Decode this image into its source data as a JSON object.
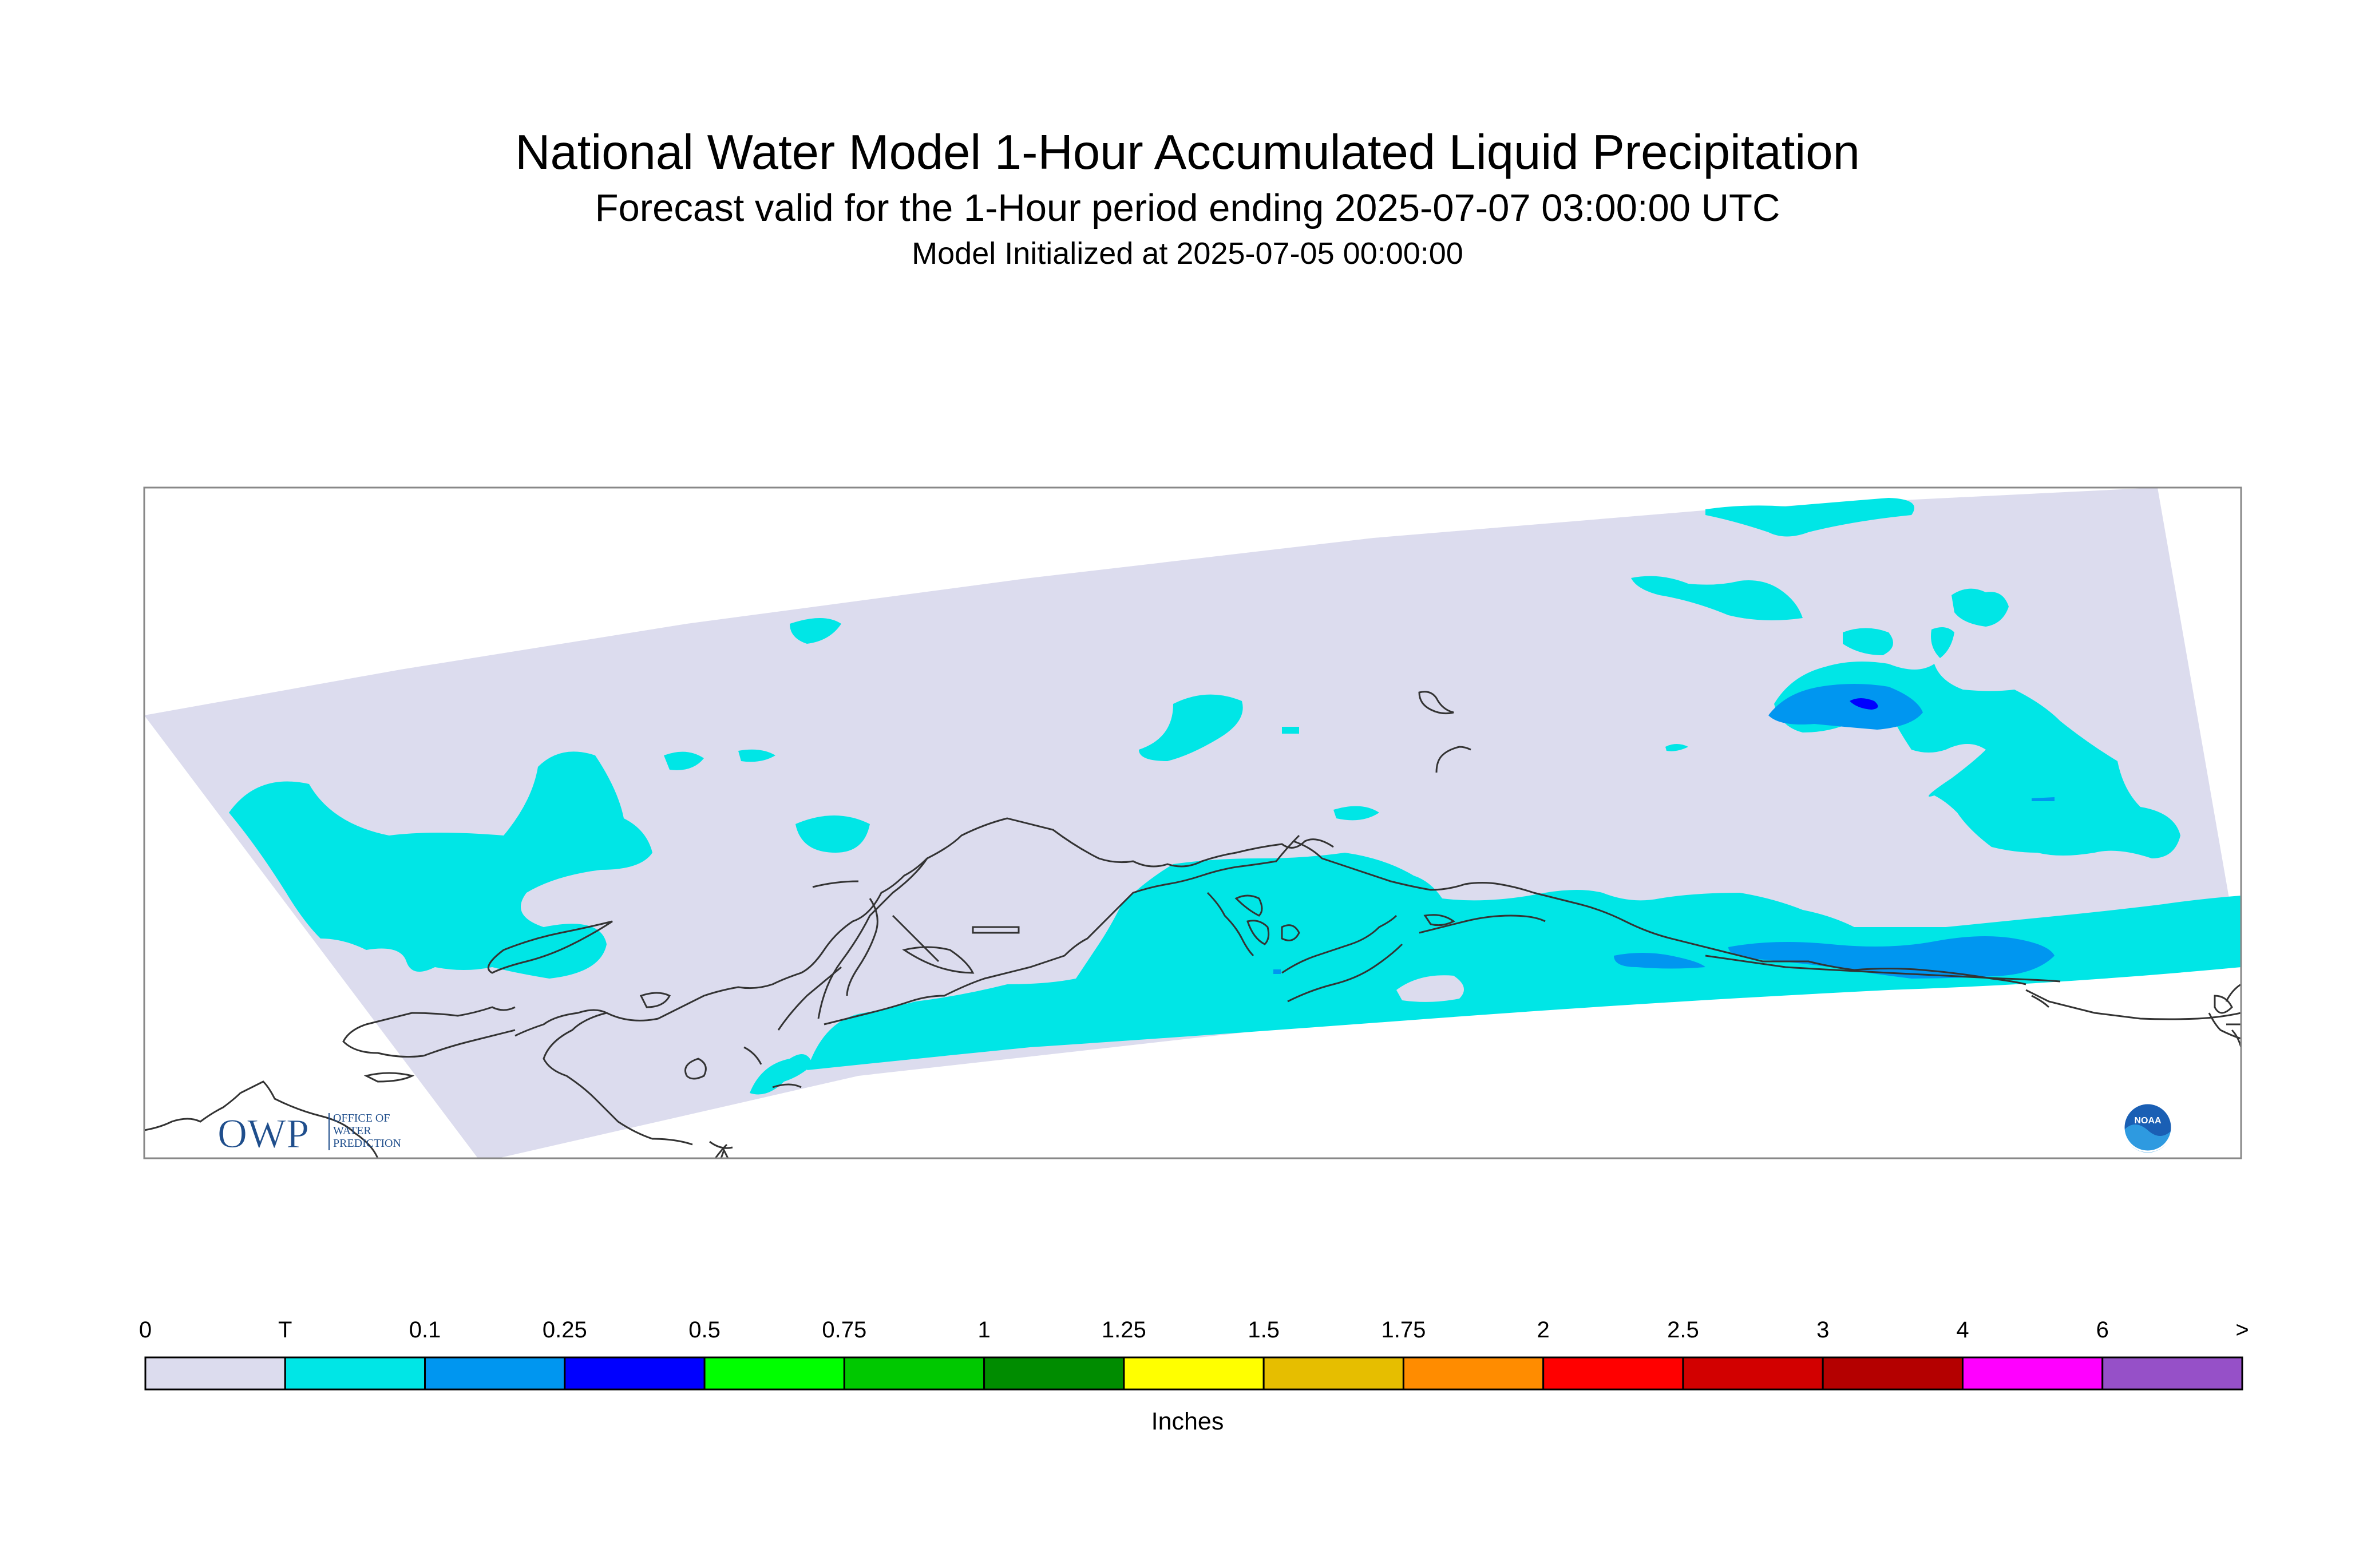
{
  "title": "National Water Model 1-Hour Accumulated Liquid Precipitation",
  "subtitle": "Forecast valid for the 1-Hour period ending 2025-07-07 03:00:00 UTC",
  "init_line": "Model Initialized at 2025-07-05 00:00:00",
  "logos": {
    "owp_letters": "OWP",
    "owp_text": [
      "OFFICE OF",
      "WATER",
      "PREDICTION"
    ],
    "noaa_text": "NOAA"
  },
  "legend": {
    "units": "Inches",
    "labels": [
      "0",
      "T",
      "0.1",
      "0.25",
      "0.5",
      "0.75",
      "1",
      "1.25",
      "1.5",
      "1.75",
      "2",
      "2.5",
      "3",
      "4",
      "6",
      ">"
    ],
    "colors": [
      "#dcdcee",
      "#00e6e6",
      "#0096f0",
      "#0000ff",
      "#00ff00",
      "#00c800",
      "#008c00",
      "#ffff00",
      "#e6be00",
      "#ff8c00",
      "#ff0000",
      "#d20000",
      "#b40000",
      "#ff00ff",
      "#9650c8"
    ]
  },
  "colors": {
    "domain": "#dcdcee",
    "trace": "#00e6e6",
    "light": "#0096f0",
    "heavy": "#0000ff",
    "coast": "#333333",
    "frame": "#888888"
  }
}
